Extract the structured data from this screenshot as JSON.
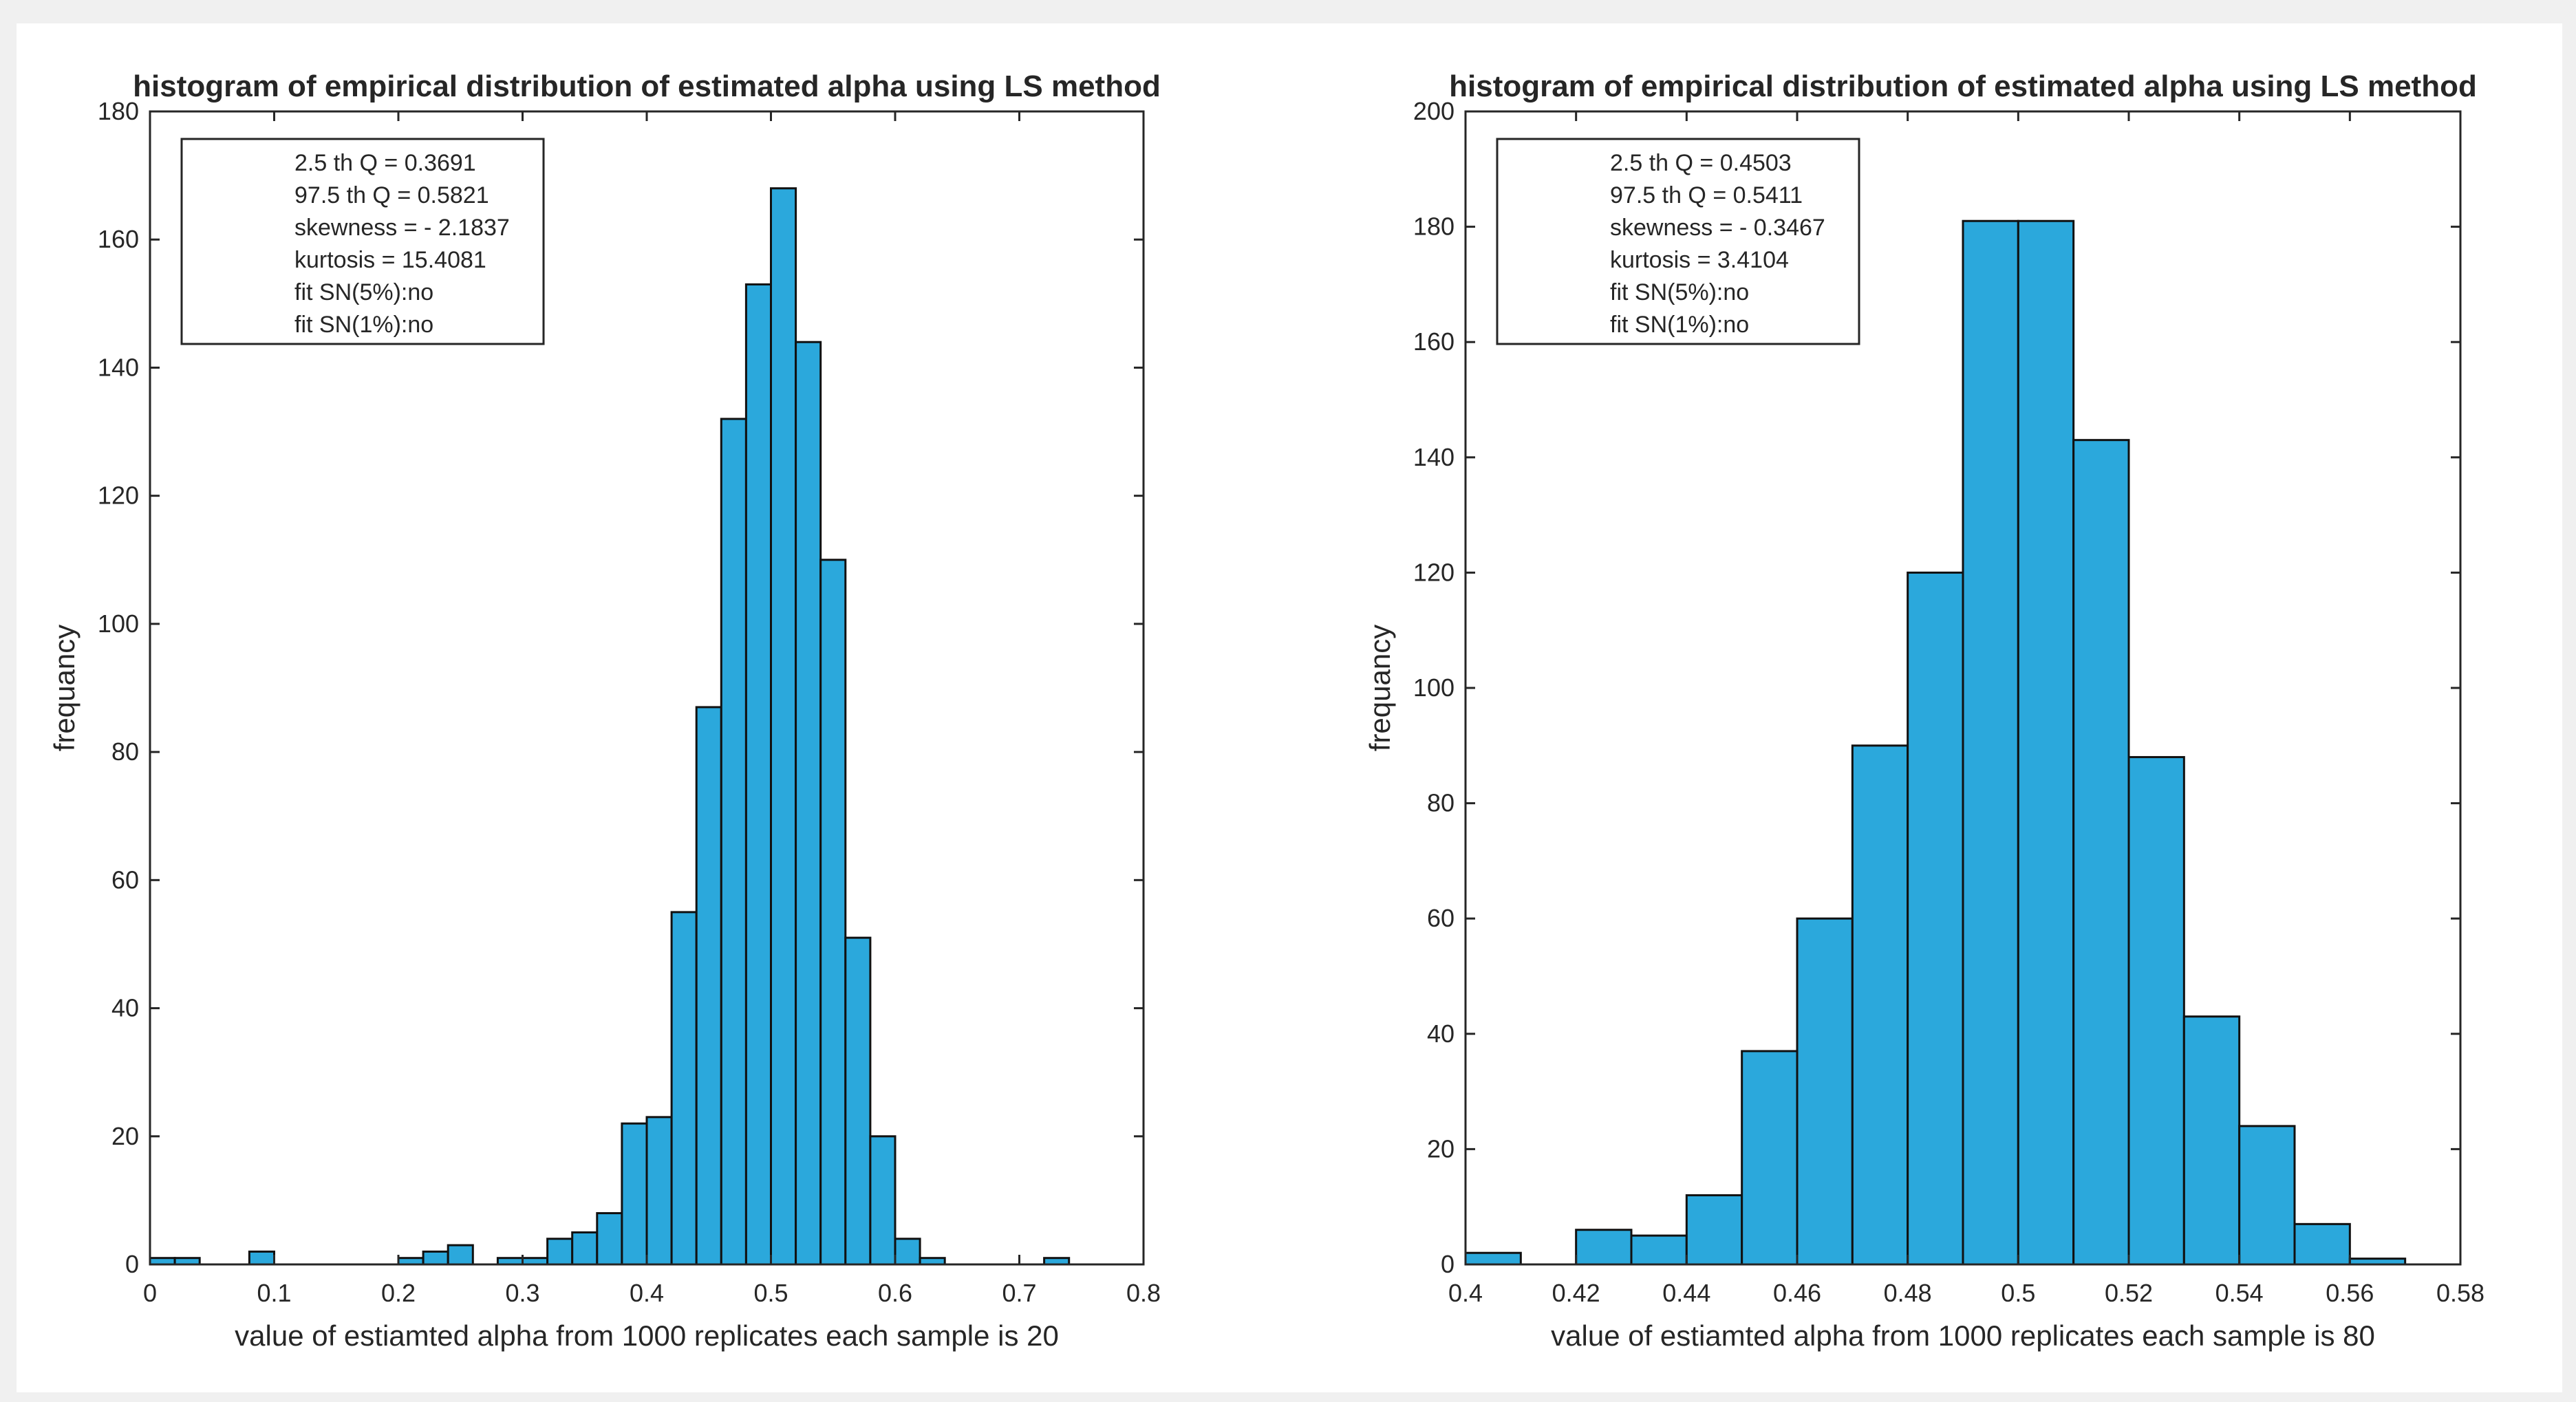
{
  "figure": {
    "background": "#ffffff",
    "bar_fill": "#2ba8dc",
    "bar_stroke": "#111111"
  },
  "chart_data": [
    {
      "type": "bar",
      "title": "histogram of empirical distribution of estimated alpha using LS method",
      "xlabel": "value of estiamted alpha from 1000 replicates each sample is 20",
      "ylabel": "frequancy",
      "xlim": [
        0,
        0.8
      ],
      "ylim": [
        0,
        180
      ],
      "xticks": [
        0,
        0.1,
        0.2,
        0.3,
        0.4,
        0.5,
        0.6,
        0.7,
        0.8
      ],
      "yticks": [
        0,
        20,
        40,
        60,
        80,
        100,
        120,
        140,
        160,
        180
      ],
      "grid": false,
      "legend_position": "top-left",
      "bins": {
        "start": 0,
        "width": 0.02,
        "values": [
          1,
          1,
          0,
          0,
          2,
          0,
          0,
          0,
          0,
          0,
          1,
          2,
          3,
          0,
          1,
          1,
          4,
          5,
          8,
          22,
          23,
          55,
          87,
          132,
          153,
          168,
          144,
          110,
          51,
          20,
          4,
          1,
          0,
          0,
          0,
          0,
          1
        ]
      },
      "stats": [
        "2.5 th Q = 0.3691",
        "97.5 th Q = 0.5821",
        "skewness = - 2.1837",
        "kurtosis = 15.4081",
        "fit SN(5%):no",
        "fit SN(1%):no"
      ]
    },
    {
      "type": "bar",
      "title": "histogram of empirical distribution of estimated alpha using LS method",
      "xlabel": "value of estiamted alpha from 1000 replicates each sample is 80",
      "ylabel": "frequancy",
      "xlim": [
        0.4,
        0.58
      ],
      "ylim": [
        0,
        200
      ],
      "xticks": [
        0.4,
        0.42,
        0.44,
        0.46,
        0.48,
        0.5,
        0.52,
        0.54,
        0.56,
        0.58
      ],
      "yticks": [
        0,
        20,
        40,
        60,
        80,
        100,
        120,
        140,
        160,
        180,
        200
      ],
      "grid": false,
      "legend_position": "top-left",
      "bins": {
        "start": 0.4,
        "width": 0.01,
        "values": [
          2,
          0,
          6,
          5,
          12,
          37,
          60,
          90,
          120,
          181,
          181,
          143,
          88,
          43,
          24,
          7,
          1
        ]
      },
      "stats": [
        "2.5 th Q = 0.4503",
        "97.5 th Q = 0.5411",
        "skewness = - 0.3467",
        "kurtosis = 3.4104",
        "fit SN(5%):no",
        "fit SN(1%):no"
      ]
    }
  ]
}
